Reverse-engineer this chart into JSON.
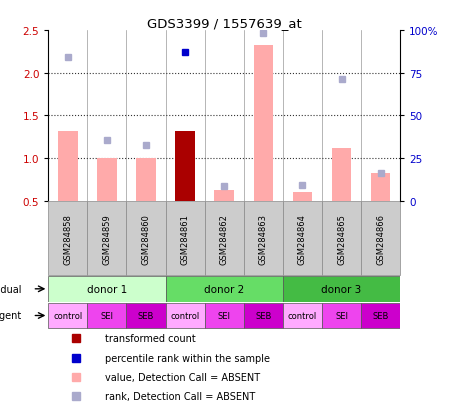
{
  "title": "GDS3399 / 1557639_at",
  "samples": [
    "GSM284858",
    "GSM284859",
    "GSM284860",
    "GSM284861",
    "GSM284862",
    "GSM284863",
    "GSM284864",
    "GSM284865",
    "GSM284866"
  ],
  "bar_values": [
    1.32,
    1.0,
    1.0,
    1.32,
    0.63,
    2.32,
    0.6,
    1.12,
    0.83
  ],
  "bar_colors": [
    "#ffaaaa",
    "#ffaaaa",
    "#ffaaaa",
    "#aa0000",
    "#ffaaaa",
    "#ffaaaa",
    "#ffaaaa",
    "#ffaaaa",
    "#ffaaaa"
  ],
  "rank_dots": [
    2.18,
    1.21,
    1.15,
    2.24,
    0.67,
    2.46,
    0.68,
    1.93,
    0.83
  ],
  "rank_dot_colors": [
    "#aaaacc",
    "#aaaacc",
    "#aaaacc",
    "#0000cc",
    "#aaaacc",
    "#aaaacc",
    "#aaaacc",
    "#aaaacc",
    "#aaaacc"
  ],
  "ylim": [
    0.5,
    2.5
  ],
  "yticks_left": [
    0.5,
    1.0,
    1.5,
    2.0,
    2.5
  ],
  "yticks_right": [
    0,
    25,
    50,
    75,
    100
  ],
  "ytick_labels_right": [
    "0",
    "25",
    "50",
    "75",
    "100%"
  ],
  "hlines": [
    1.0,
    1.5,
    2.0
  ],
  "donors": [
    {
      "label": "donor 1",
      "start": 0,
      "end": 3,
      "color": "#ccffcc"
    },
    {
      "label": "donor 2",
      "start": 3,
      "end": 6,
      "color": "#66dd66"
    },
    {
      "label": "donor 3",
      "start": 6,
      "end": 9,
      "color": "#44bb44"
    }
  ],
  "agents": [
    "control",
    "SEI",
    "SEB",
    "control",
    "SEI",
    "SEB",
    "control",
    "SEI",
    "SEB"
  ],
  "agent_colors": [
    "#ffaaff",
    "#ee44ee",
    "#cc00cc",
    "#ffaaff",
    "#ee44ee",
    "#cc00cc",
    "#ffaaff",
    "#ee44ee",
    "#cc00cc"
  ],
  "bar_width": 0.5,
  "ylabel_left_color": "#cc0000",
  "ylabel_right_color": "#0000cc",
  "grid_color": "#333333",
  "legend_items": [
    {
      "label": "transformed count",
      "color": "#aa0000"
    },
    {
      "label": "percentile rank within the sample",
      "color": "#0000cc"
    },
    {
      "label": "value, Detection Call = ABSENT",
      "color": "#ffaaaa"
    },
    {
      "label": "rank, Detection Call = ABSENT",
      "color": "#aaaacc"
    }
  ]
}
